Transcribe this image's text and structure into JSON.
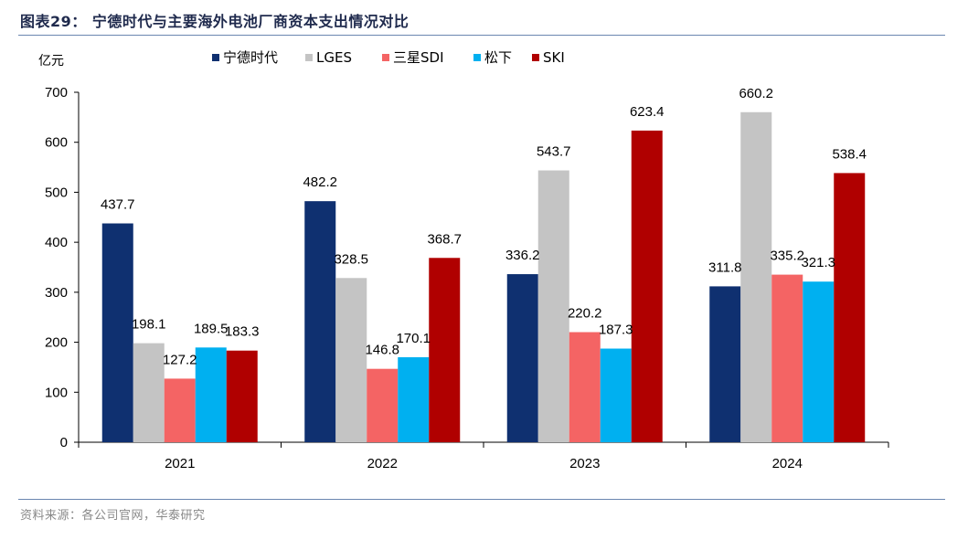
{
  "figure": {
    "title": "图表29：  宁德时代与主要海外电池厂商资本支出情况对比",
    "source": "资料来源：各公司官网，华泰研究"
  },
  "chart_data": {
    "type": "bar",
    "unit": "亿元",
    "categories": [
      "2021",
      "2022",
      "2023",
      "2024"
    ],
    "series": [
      {
        "name": "宁德时代",
        "color": "#0f3070",
        "values": [
          437.7,
          482.2,
          336.2,
          311.8
        ]
      },
      {
        "name": "LGES",
        "color": "#c4c4c4",
        "values": [
          198.1,
          328.5,
          543.7,
          660.2
        ]
      },
      {
        "name": "三星SDI",
        "color": "#f46464",
        "values": [
          127.2,
          146.8,
          220.2,
          335.2
        ]
      },
      {
        "name": "松下",
        "color": "#00b0f0",
        "values": [
          189.5,
          170.1,
          187.3,
          321.3
        ]
      },
      {
        "name": "SKI",
        "color": "#b00000",
        "values": [
          183.3,
          368.7,
          623.4,
          538.4
        ]
      }
    ],
    "ylim": [
      0,
      700
    ],
    "yticks": [
      0,
      100,
      200,
      300,
      400,
      500,
      600,
      700
    ],
    "legend": "top",
    "grid": false
  }
}
